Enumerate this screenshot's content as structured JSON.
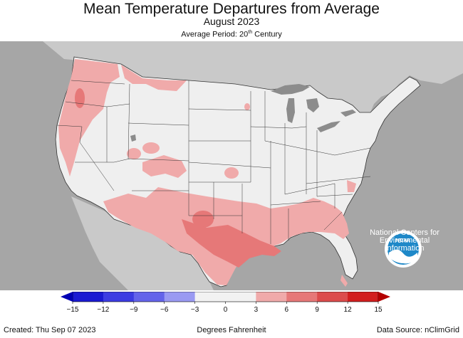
{
  "title": "Mean Temperature Departures from Average",
  "subtitle": "August 2023",
  "period": {
    "prefix": "Average Period: 20",
    "sup": "th",
    "suffix": " Century"
  },
  "logo": {
    "text": "NOAA",
    "caption_lines": [
      "National Centers for",
      "Environmental",
      "Information"
    ]
  },
  "colorbar": {
    "ticks": [
      "−15",
      "−12",
      "−9",
      "−6",
      "−3",
      "0",
      "3",
      "6",
      "9",
      "12",
      "15"
    ],
    "colors": [
      "#1a1ad2",
      "#3c3ce2",
      "#6464ea",
      "#9a9af2",
      "#f2f2f2",
      "#f2f2f2",
      "#f0aaaa",
      "#e67878",
      "#dc4c4c",
      "#d21e1e"
    ],
    "low_arrow_color": "#0000b4",
    "high_arrow_color": "#b40000"
  },
  "footer": {
    "created": "Created: Thu Sep 07 2023",
    "units": "Degrees Fahrenheit",
    "source": "Data Source: nClimGrid"
  },
  "colors": {
    "ocean": "#a6a6a6",
    "land_other": "#c9c9c9",
    "lakes": "#8c8c8c",
    "near_normal": "#efefef",
    "warm_3_6": "#f0aaaa",
    "warm_6_9": "#e67878",
    "noaa_blue": "#1e88c8"
  }
}
